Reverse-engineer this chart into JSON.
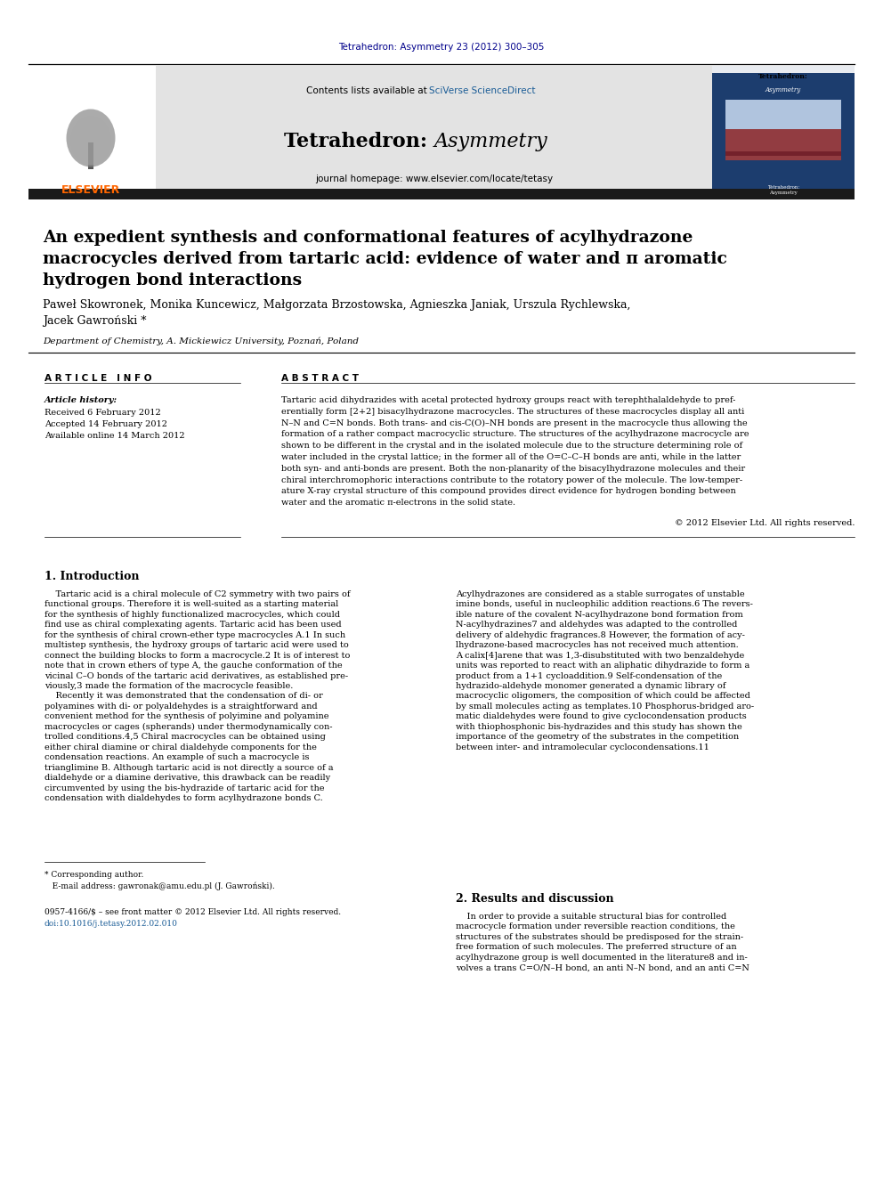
{
  "journal_ref": "Tetrahedron: Asymmetry 23 (2012) 300–305",
  "contents_pre": "Contents lists available at ",
  "contents_link": "SciVerse ScienceDirect",
  "journal_name_bold": "Tetrahedron: ",
  "journal_name_italic": "Asymmetry",
  "journal_homepage": "journal homepage: www.elsevier.com/locate/tetasy",
  "elsevier_text": "ELSEVIER",
  "title_line1": "An expedient synthesis and conformational features of acylhydrazone",
  "title_line2": "macrocycles derived from tartaric acid: evidence of water and π aromatic",
  "title_line3": "hydrogen bond interactions",
  "authors_line1": "Paweł Skowronek, Monika Kuncewicz, Małgorzata Brzostowska, Agnieszka Janiak, Urszula Rychlewska,",
  "authors_line2": "Jacek Gawroński *",
  "affiliation": "Department of Chemistry, A. Mickiewicz University, Poznań, Poland",
  "article_info_header": "A R T I C L E   I N F O",
  "abstract_header": "A B S T R A C T",
  "article_history_label": "Article history:",
  "received": "Received 6 February 2012",
  "accepted": "Accepted 14 February 2012",
  "available": "Available online 14 March 2012",
  "abstract_line1": "Tartaric acid dihydrazides with acetal protected hydroxy groups react with terephthalaldehyde to pref-",
  "abstract_line2": "erentially form [2+2] bisacylhydrazone macrocycles. The structures of these macrocycles display all anti",
  "abstract_line3": "N–N and C=N bonds. Both trans- and cis-C(O)–NH bonds are present in the macrocycle thus allowing the",
  "abstract_line4": "formation of a rather compact macrocyclic structure. The structures of the acylhydrazone macrocycle are",
  "abstract_line5": "shown to be different in the crystal and in the isolated molecule due to the structure determining role of",
  "abstract_line6": "water included in the crystal lattice; in the former all of the O=C–C–H bonds are anti, while in the latter",
  "abstract_line7": "both syn- and anti-bonds are present. Both the non-planarity of the bisacylhydrazone molecules and their",
  "abstract_line8": "chiral interchromophoric interactions contribute to the rotatory power of the molecule. The low-temper-",
  "abstract_line9": "ature X-ray crystal structure of this compound provides direct evidence for hydrogen bonding between",
  "abstract_line10": "water and the aromatic π-electrons in the solid state.",
  "copyright": "© 2012 Elsevier Ltd. All rights reserved.",
  "section1_title": "1. Introduction",
  "intro_left": "    Tartaric acid is a chiral molecule of C2 symmetry with two pairs of\nfunctional groups. Therefore it is well-suited as a starting material\nfor the synthesis of highly functionalized macrocycles, which could\nfind use as chiral complexating agents. Tartaric acid has been used\nfor the synthesis of chiral crown-ether type macrocycles A.1 In such\nmultistep synthesis, the hydroxy groups of tartaric acid were used to\nconnect the building blocks to form a macrocycle.2 It is of interest to\nnote that in crown ethers of type A, the gauche conformation of the\nvicinal C–O bonds of the tartaric acid derivatives, as established pre-\nviously,3 made the formation of the macrocycle feasible.\n    Recently it was demonstrated that the condensation of di- or\npolyamines with di- or polyaldehydes is a straightforward and\nconvenient method for the synthesis of polyimine and polyamine\nmacrocycles or cages (spherands) under thermodynamically con-\ntrolled conditions.4,5 Chiral macrocycles can be obtained using\neither chiral diamine or chiral dialdehyde components for the\ncondensation reactions. An example of such a macrocycle is\ntrianglimine B. Although tartaric acid is not directly a source of a\ndialdehyde or a diamine derivative, this drawback can be readily\ncircumvented by using the bis-hydrazide of tartaric acid for the\ncondensation with dialdehydes to form acylhydrazone bonds C.",
  "intro_right": "Acylhydrazones are considered as a stable surrogates of unstable\nimine bonds, useful in nucleophilic addition reactions.6 The revers-\nible nature of the covalent N-acylhydrazone bond formation from\nN-acylhydrazines7 and aldehydes was adapted to the controlled\ndelivery of aldehydic fragrances.8 However, the formation of acy-\nlhydrazone-based macrocycles has not received much attention.\nA calix[4]arene that was 1,3-disubstituted with two benzaldehyde\nunits was reported to react with an aliphatic dihydrazide to form a\nproduct from a 1+1 cycloaddition.9 Self-condensation of the\nhydrazido-aldehyde monomer generated a dynamic library of\nmacrocyclic oligomers, the composition of which could be affected\nby small molecules acting as templates.10 Phosphorus-bridged aro-\nmatic dialdehydes were found to give cyclocondensation products\nwith thiophosphonic bis-hydrazides and this study has shown the\nimportance of the geometry of the substrates in the competition\nbetween inter- and intramolecular cyclocondensations.11",
  "section2_title": "2. Results and discussion",
  "results_text": "    In order to provide a suitable structural bias for controlled\nmacrocycle formation under reversible reaction conditions, the\nstructures of the substrates should be predisposed for the strain-\nfree formation of such molecules. The preferred structure of an\nacylhydrazone group is well documented in the literature8 and in-\nvolves a trans C=O/N–H bond, an anti N–N bond, and an anti C=N",
  "footer_star": "* Corresponding author.",
  "footer_email": "   E-mail address: gawronak@amu.edu.pl (J. Gawroński).",
  "issn_text": "0957-4166/$ – see front matter © 2012 Elsevier Ltd. All rights reserved.",
  "doi_text": "doi:10.1016/j.tetasy.2012.02.010",
  "bg_color": "#ffffff",
  "header_bg": "#e3e3e3",
  "dark_bar_color": "#1a1a1a",
  "journal_ref_color": "#00008B",
  "link_color": "#1a5c96",
  "elsevier_color": "#FF6600",
  "cover_bg": "#1c3d6e",
  "cover_red": "#8B1010"
}
